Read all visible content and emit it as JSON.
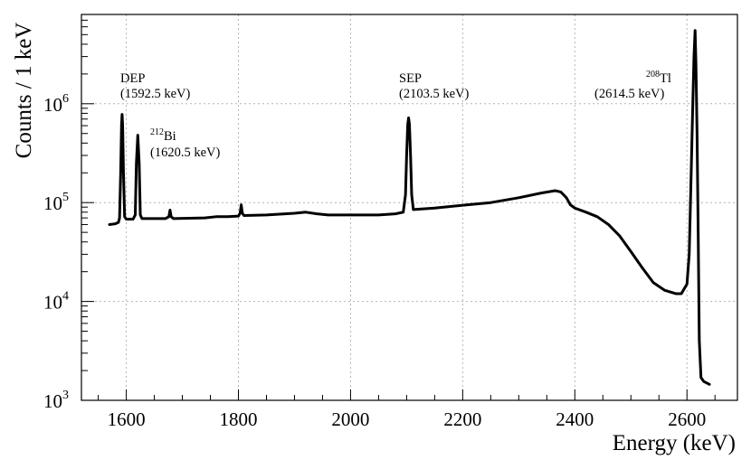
{
  "chart_data": {
    "type": "line",
    "xlabel": "Energy (keV)",
    "ylabel": "Counts / 1 keV",
    "xlim": [
      1520,
      2690
    ],
    "ylim": [
      1000,
      8000000
    ],
    "y_scale": "log",
    "grid": true,
    "x_ticks": [
      1600,
      1800,
      2000,
      2200,
      2400,
      2600
    ],
    "x_tick_labels": [
      "1600",
      "1800",
      "2000",
      "2200",
      "2400",
      "2600"
    ],
    "y_ticks": [
      1000,
      10000,
      100000,
      1000000
    ],
    "y_tick_labels": [
      {
        "base": "10",
        "exp": "3"
      },
      {
        "base": "10",
        "exp": "4"
      },
      {
        "base": "10",
        "exp": "5"
      },
      {
        "base": "10",
        "exp": "6"
      }
    ],
    "annotations": [
      {
        "name": "dep",
        "lines": [
          "DEP",
          "(1592.5 keV)"
        ],
        "x": 1592.5
      },
      {
        "name": "bi212",
        "iso_mass": "212",
        "iso_symbol": "Bi",
        "energy": "(1620.5 keV)",
        "x": 1620.5
      },
      {
        "name": "sep",
        "lines": [
          "SEP",
          "(2103.5 keV)"
        ],
        "x": 2103.5
      },
      {
        "name": "tl208",
        "iso_mass": "208",
        "iso_symbol": "Tl",
        "energy": "(2614.5 keV)",
        "x": 2614.5
      }
    ],
    "series": [
      {
        "color": "#000000",
        "points": [
          [
            1570,
            60000
          ],
          [
            1580,
            61000
          ],
          [
            1586,
            63000
          ],
          [
            1588,
            70000
          ],
          [
            1590,
            200000
          ],
          [
            1591.5,
            600000
          ],
          [
            1592.5,
            780000
          ],
          [
            1593.5,
            600000
          ],
          [
            1595,
            200000
          ],
          [
            1597,
            72000
          ],
          [
            1600,
            68000
          ],
          [
            1612,
            68000
          ],
          [
            1616,
            75000
          ],
          [
            1618,
            250000
          ],
          [
            1620.5,
            480000
          ],
          [
            1623,
            250000
          ],
          [
            1625,
            75000
          ],
          [
            1628,
            69000
          ],
          [
            1670,
            69000
          ],
          [
            1676,
            72000
          ],
          [
            1678,
            84000
          ],
          [
            1680,
            72000
          ],
          [
            1684,
            69000
          ],
          [
            1740,
            70000
          ],
          [
            1760,
            72000
          ],
          [
            1780,
            72000
          ],
          [
            1800,
            73000
          ],
          [
            1803,
            78000
          ],
          [
            1805,
            95000
          ],
          [
            1807,
            78000
          ],
          [
            1810,
            74000
          ],
          [
            1850,
            75000
          ],
          [
            1900,
            78000
          ],
          [
            1920,
            80000
          ],
          [
            1940,
            77000
          ],
          [
            1960,
            75000
          ],
          [
            2000,
            75000
          ],
          [
            2050,
            75000
          ],
          [
            2080,
            77000
          ],
          [
            2094,
            80000
          ],
          [
            2098,
            120000
          ],
          [
            2100,
            300000
          ],
          [
            2102,
            620000
          ],
          [
            2103.5,
            720000
          ],
          [
            2105,
            620000
          ],
          [
            2107,
            300000
          ],
          [
            2109,
            120000
          ],
          [
            2112,
            85000
          ],
          [
            2150,
            88000
          ],
          [
            2200,
            94000
          ],
          [
            2250,
            100000
          ],
          [
            2300,
            112000
          ],
          [
            2340,
            125000
          ],
          [
            2365,
            132000
          ],
          [
            2375,
            128000
          ],
          [
            2385,
            112000
          ],
          [
            2392,
            95000
          ],
          [
            2400,
            88000
          ],
          [
            2420,
            80000
          ],
          [
            2440,
            72000
          ],
          [
            2460,
            60000
          ],
          [
            2480,
            46000
          ],
          [
            2500,
            32000
          ],
          [
            2520,
            22000
          ],
          [
            2540,
            15500
          ],
          [
            2560,
            13000
          ],
          [
            2580,
            12000
          ],
          [
            2590,
            12000
          ],
          [
            2600,
            15000
          ],
          [
            2604,
            30000
          ],
          [
            2607,
            150000
          ],
          [
            2610,
            800000
          ],
          [
            2612.5,
            3000000
          ],
          [
            2614.5,
            5500000
          ],
          [
            2616,
            2500000
          ],
          [
            2618,
            500000
          ],
          [
            2620,
            50000
          ],
          [
            2622,
            4000
          ],
          [
            2625,
            1700
          ],
          [
            2630,
            1550
          ],
          [
            2640,
            1450
          ]
        ]
      }
    ]
  }
}
